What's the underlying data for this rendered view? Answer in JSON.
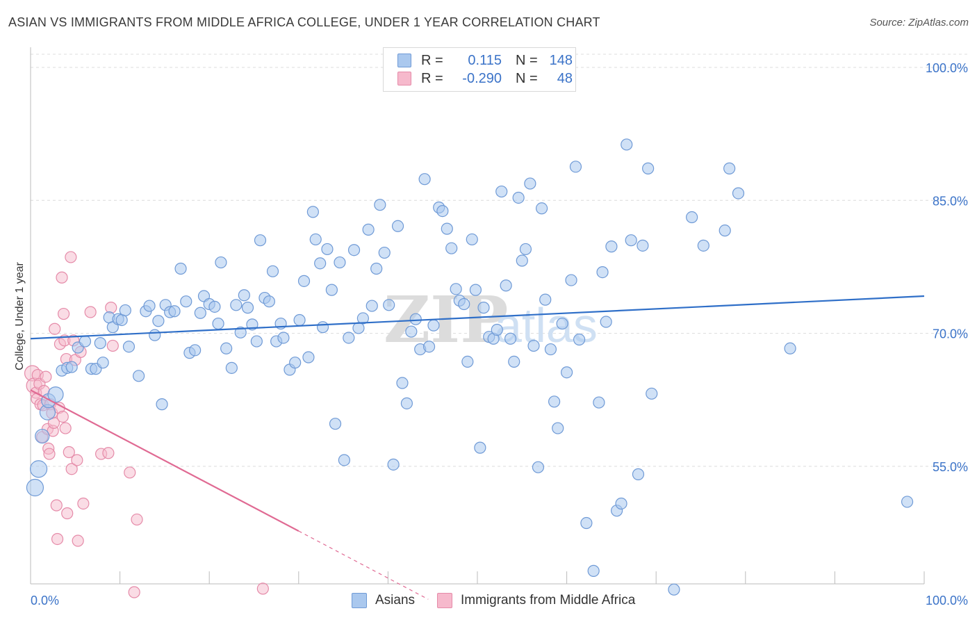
{
  "title": "ASIAN VS IMMIGRANTS FROM MIDDLE AFRICA COLLEGE, UNDER 1 YEAR CORRELATION CHART",
  "source": "Source: ZipAtlas.com",
  "legend": {
    "rows": [
      {
        "r_label": "R =",
        "r_value": "0.115",
        "n_label": "N =",
        "n_value": "148"
      },
      {
        "r_label": "R =",
        "r_value": "-0.290",
        "n_label": "N =",
        "n_value": "48"
      }
    ]
  },
  "colors": {
    "asian_fill": "#aac8ee",
    "asian_stroke": "#6f9ad6",
    "asian_line": "#2f6fc8",
    "africa_fill": "#f6b9cc",
    "africa_stroke": "#e58aa8",
    "africa_line": "#e06a93",
    "axis_label": "#3b73c8",
    "grid": "#dcdcdc"
  },
  "chart_data": {
    "type": "scatter",
    "title": "ASIAN VS IMMIGRANTS FROM MIDDLE AFRICA COLLEGE, UNDER 1 YEAR CORRELATION CHART",
    "xlabel": "",
    "ylabel": "College, Under 1 year",
    "x_tick_labels": [
      "0.0%",
      "100.0%"
    ],
    "y_tick_labels": [
      "55.0%",
      "70.0%",
      "85.0%",
      "100.0%"
    ],
    "y_ticks": [
      55,
      70,
      85,
      100
    ],
    "xlim": [
      0,
      100
    ],
    "ylim": [
      39,
      102
    ],
    "grid": true,
    "legend_position": "top-center",
    "watermark": "ZIPatlas",
    "series": [
      {
        "name": "Asians",
        "color": "#aac8ee",
        "trend": {
          "x": [
            0,
            100
          ],
          "y": [
            69.4,
            74.2
          ]
        },
        "points": [
          [
            0.5,
            52.6
          ],
          [
            0.9,
            54.7
          ],
          [
            1.3,
            58.4
          ],
          [
            1.9,
            61.1
          ],
          [
            2.0,
            62.4
          ],
          [
            2.8,
            63.1
          ],
          [
            3.5,
            65.8
          ],
          [
            4.1,
            66.1
          ],
          [
            4.6,
            66.2
          ],
          [
            5.3,
            68.4
          ],
          [
            6.1,
            69.1
          ],
          [
            6.8,
            66.0
          ],
          [
            7.3,
            66.0
          ],
          [
            7.8,
            68.9
          ],
          [
            8.1,
            66.7
          ],
          [
            8.8,
            71.8
          ],
          [
            9.2,
            70.7
          ],
          [
            9.8,
            71.6
          ],
          [
            10.2,
            71.5
          ],
          [
            10.6,
            72.6
          ],
          [
            11.0,
            68.5
          ],
          [
            12.1,
            65.2
          ],
          [
            12.9,
            72.5
          ],
          [
            13.3,
            73.1
          ],
          [
            13.9,
            69.8
          ],
          [
            14.3,
            71.4
          ],
          [
            14.7,
            62.0
          ],
          [
            15.1,
            73.2
          ],
          [
            15.6,
            72.4
          ],
          [
            16.1,
            72.5
          ],
          [
            16.8,
            77.3
          ],
          [
            17.4,
            73.6
          ],
          [
            17.8,
            67.8
          ],
          [
            18.4,
            68.1
          ],
          [
            19.0,
            72.3
          ],
          [
            19.4,
            74.2
          ],
          [
            20.0,
            73.3
          ],
          [
            20.6,
            73.0
          ],
          [
            21.0,
            71.1
          ],
          [
            21.3,
            78.0
          ],
          [
            21.9,
            68.3
          ],
          [
            22.5,
            66.1
          ],
          [
            23.0,
            73.2
          ],
          [
            23.5,
            70.1
          ],
          [
            23.9,
            74.3
          ],
          [
            24.3,
            72.9
          ],
          [
            24.8,
            71.0
          ],
          [
            25.3,
            69.1
          ],
          [
            25.7,
            80.5
          ],
          [
            26.2,
            74.0
          ],
          [
            26.7,
            73.6
          ],
          [
            27.1,
            77.0
          ],
          [
            27.5,
            69.1
          ],
          [
            28.0,
            71.1
          ],
          [
            28.3,
            69.5
          ],
          [
            29.0,
            65.9
          ],
          [
            29.6,
            66.7
          ],
          [
            30.1,
            71.5
          ],
          [
            30.6,
            75.9
          ],
          [
            31.1,
            67.3
          ],
          [
            31.6,
            83.7
          ],
          [
            31.9,
            80.6
          ],
          [
            32.4,
            77.9
          ],
          [
            32.7,
            70.7
          ],
          [
            33.2,
            79.5
          ],
          [
            33.7,
            74.9
          ],
          [
            34.1,
            59.8
          ],
          [
            34.6,
            78.0
          ],
          [
            35.1,
            55.7
          ],
          [
            35.6,
            69.5
          ],
          [
            36.2,
            79.4
          ],
          [
            36.7,
            70.6
          ],
          [
            37.2,
            71.7
          ],
          [
            37.8,
            81.7
          ],
          [
            38.2,
            73.1
          ],
          [
            38.7,
            77.3
          ],
          [
            39.1,
            84.5
          ],
          [
            39.6,
            79.1
          ],
          [
            40.1,
            73.2
          ],
          [
            40.6,
            55.2
          ],
          [
            41.1,
            82.1
          ],
          [
            41.6,
            64.4
          ],
          [
            42.1,
            62.1
          ],
          [
            42.6,
            70.2
          ],
          [
            43.1,
            71.6
          ],
          [
            43.6,
            68.2
          ],
          [
            44.1,
            87.4
          ],
          [
            44.6,
            68.5
          ],
          [
            45.1,
            70.9
          ],
          [
            45.7,
            84.2
          ],
          [
            46.1,
            83.8
          ],
          [
            46.6,
            81.8
          ],
          [
            47.1,
            79.6
          ],
          [
            47.6,
            75.0
          ],
          [
            48.0,
            73.7
          ],
          [
            48.5,
            73.3
          ],
          [
            48.9,
            66.8
          ],
          [
            49.4,
            80.6
          ],
          [
            49.8,
            74.9
          ],
          [
            50.3,
            57.1
          ],
          [
            50.7,
            72.9
          ],
          [
            51.3,
            69.6
          ],
          [
            51.8,
            69.4
          ],
          [
            52.2,
            70.4
          ],
          [
            52.7,
            86.0
          ],
          [
            53.2,
            75.4
          ],
          [
            53.7,
            69.4
          ],
          [
            54.1,
            66.8
          ],
          [
            54.6,
            85.3
          ],
          [
            55.0,
            78.2
          ],
          [
            55.4,
            79.5
          ],
          [
            55.9,
            86.9
          ],
          [
            56.3,
            68.6
          ],
          [
            56.8,
            54.9
          ],
          [
            57.2,
            84.1
          ],
          [
            57.6,
            73.8
          ],
          [
            58.2,
            68.2
          ],
          [
            58.6,
            62.3
          ],
          [
            59.0,
            59.3
          ],
          [
            59.5,
            71.1
          ],
          [
            60.0,
            65.6
          ],
          [
            60.5,
            76.0
          ],
          [
            61.0,
            88.8
          ],
          [
            61.4,
            69.3
          ],
          [
            62.2,
            48.6
          ],
          [
            63.0,
            43.2
          ],
          [
            63.6,
            62.2
          ],
          [
            64.0,
            76.9
          ],
          [
            64.4,
            71.3
          ],
          [
            65.0,
            79.8
          ],
          [
            65.6,
            50.0
          ],
          [
            66.1,
            50.8
          ],
          [
            66.7,
            91.3
          ],
          [
            67.2,
            80.5
          ],
          [
            68.0,
            54.1
          ],
          [
            68.5,
            79.9
          ],
          [
            69.1,
            88.6
          ],
          [
            69.5,
            63.2
          ],
          [
            72.0,
            41.1
          ],
          [
            74.0,
            83.1
          ],
          [
            75.3,
            79.9
          ],
          [
            77.7,
            81.6
          ],
          [
            78.2,
            88.6
          ],
          [
            79.2,
            85.8
          ],
          [
            85.0,
            68.3
          ],
          [
            98.1,
            51.0
          ]
        ]
      },
      {
        "name": "Immigrants from Middle Africa",
        "color": "#f6b9cc",
        "trend": {
          "x": [
            0,
            30
          ],
          "y": [
            63.6,
            47.7
          ]
        },
        "trend_dashed": {
          "x": [
            30,
            44.5
          ],
          "y": [
            47.7,
            40.0
          ]
        },
        "points": [
          [
            0.2,
            65.5
          ],
          [
            0.4,
            64.1
          ],
          [
            0.6,
            63.3
          ],
          [
            0.7,
            62.6
          ],
          [
            0.8,
            65.3
          ],
          [
            1.0,
            64.3
          ],
          [
            1.1,
            62.0
          ],
          [
            1.3,
            58.3
          ],
          [
            1.4,
            61.9
          ],
          [
            1.5,
            63.5
          ],
          [
            1.7,
            65.1
          ],
          [
            1.9,
            59.2
          ],
          [
            2.0,
            57.0
          ],
          [
            2.1,
            56.4
          ],
          [
            2.2,
            62.0
          ],
          [
            2.4,
            61.0
          ],
          [
            2.5,
            59.0
          ],
          [
            2.6,
            59.9
          ],
          [
            2.7,
            70.5
          ],
          [
            2.9,
            50.6
          ],
          [
            3.0,
            46.8
          ],
          [
            3.2,
            61.6
          ],
          [
            3.3,
            68.8
          ],
          [
            3.5,
            76.3
          ],
          [
            3.6,
            60.6
          ],
          [
            3.7,
            72.2
          ],
          [
            3.8,
            69.2
          ],
          [
            3.9,
            59.3
          ],
          [
            4.0,
            67.1
          ],
          [
            4.1,
            49.7
          ],
          [
            4.3,
            56.6
          ],
          [
            4.5,
            78.6
          ],
          [
            4.6,
            54.7
          ],
          [
            4.8,
            69.2
          ],
          [
            5.0,
            67.0
          ],
          [
            5.2,
            55.7
          ],
          [
            5.3,
            46.6
          ],
          [
            5.6,
            67.9
          ],
          [
            5.9,
            50.8
          ],
          [
            6.7,
            72.4
          ],
          [
            7.9,
            56.4
          ],
          [
            8.7,
            56.5
          ],
          [
            9.0,
            72.9
          ],
          [
            9.2,
            68.6
          ],
          [
            11.1,
            54.3
          ],
          [
            11.6,
            40.8
          ],
          [
            11.9,
            49.0
          ],
          [
            26.0,
            41.2
          ]
        ]
      }
    ]
  },
  "bottom_legend": [
    "Asians",
    "Immigrants from Middle Africa"
  ]
}
